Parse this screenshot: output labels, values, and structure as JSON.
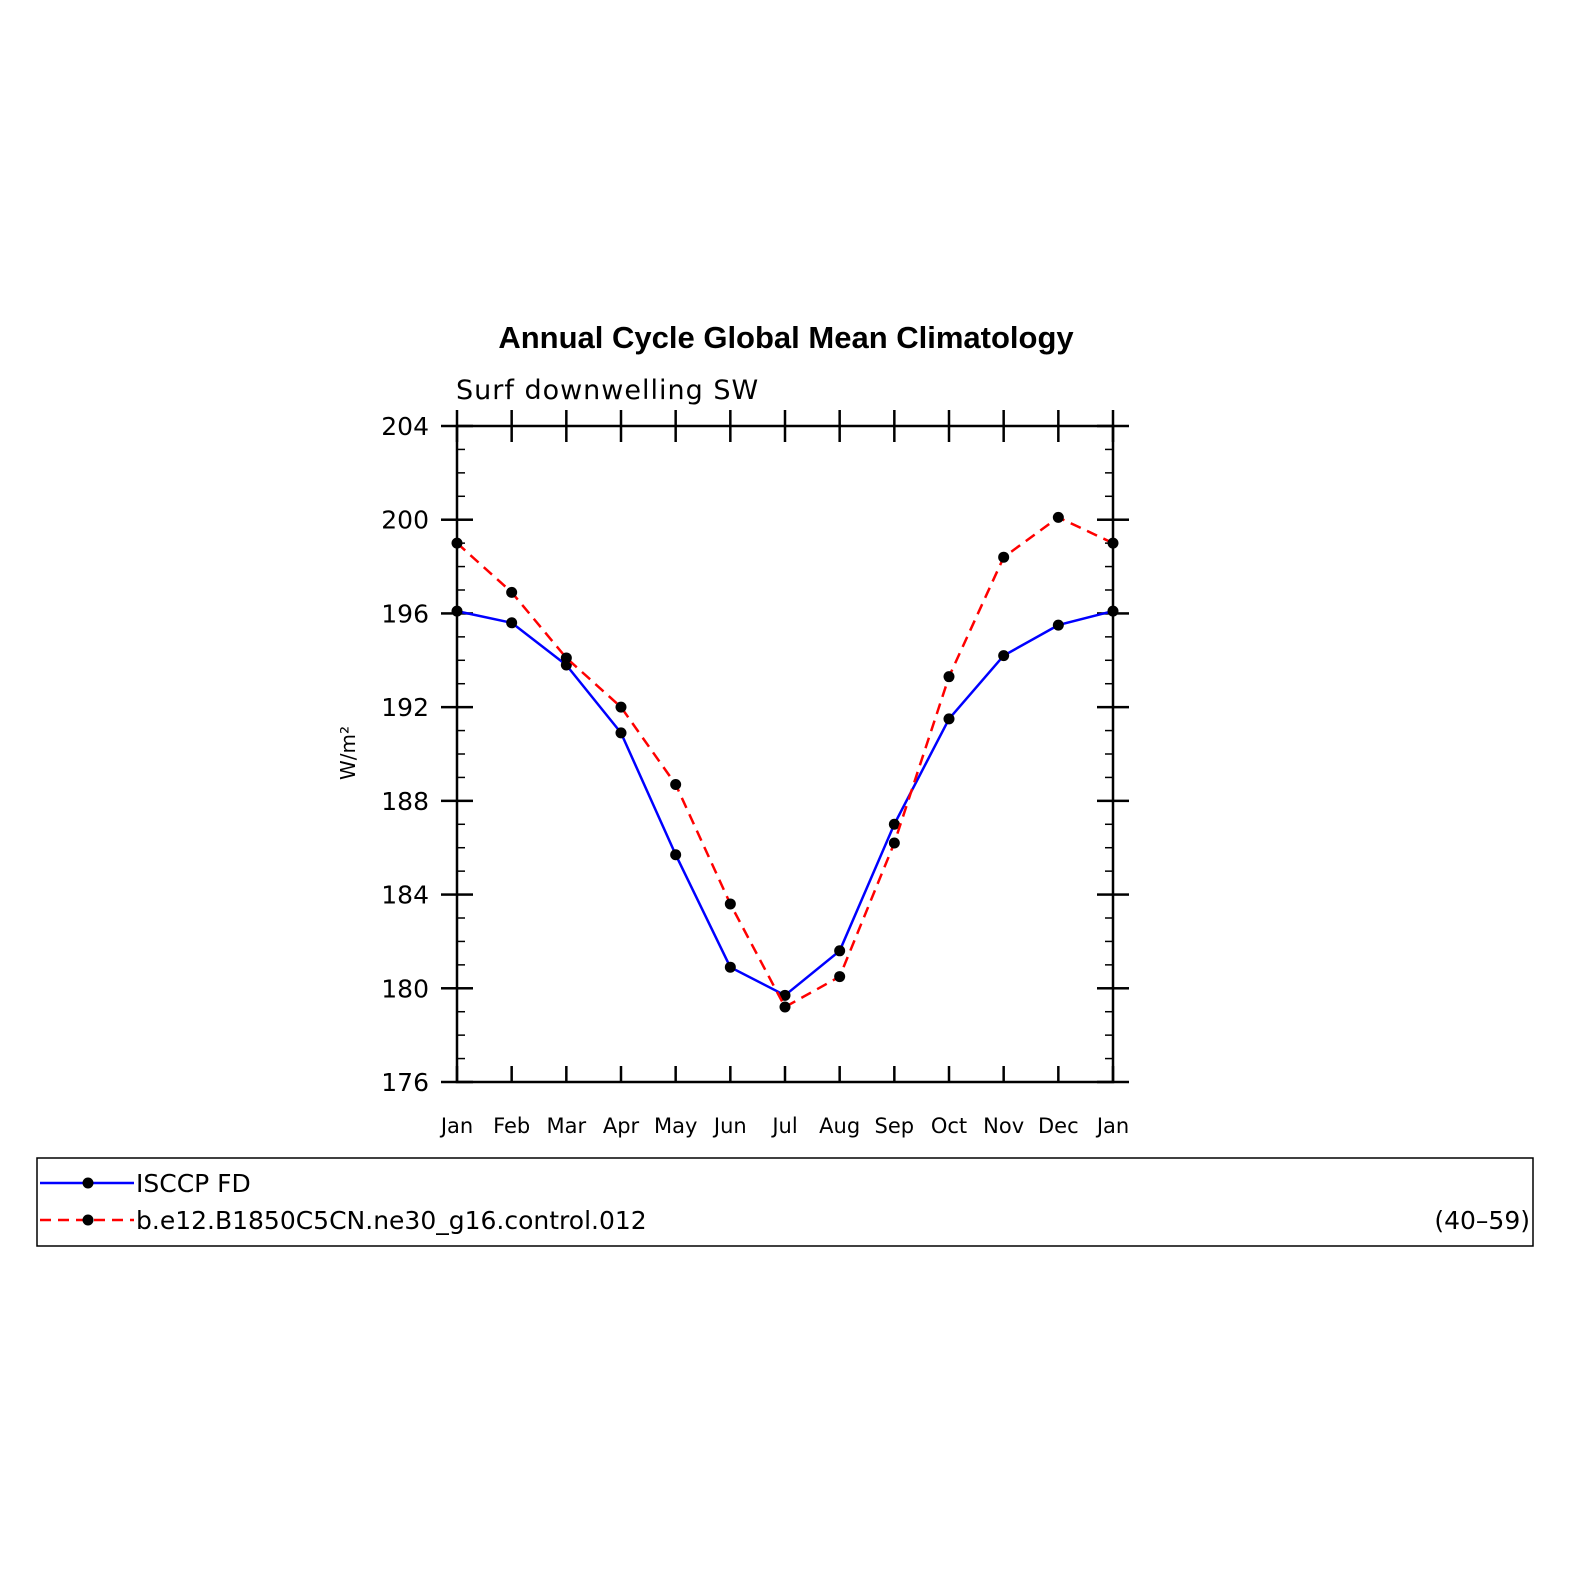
{
  "chart_data": {
    "type": "line",
    "title": "Annual Cycle Global Mean Climatology",
    "subtitle": "Surf downwelling SW",
    "ylabel": "W/m²",
    "xlabel": "",
    "categories": [
      "Jan",
      "Feb",
      "Mar",
      "Apr",
      "May",
      "Jun",
      "Jul",
      "Aug",
      "Sep",
      "Oct",
      "Nov",
      "Dec",
      "Jan"
    ],
    "ylim": [
      176,
      204
    ],
    "yticks": [
      176,
      180,
      184,
      188,
      192,
      196,
      200,
      204
    ],
    "grid": false,
    "legend_position": "bottom",
    "series": [
      {
        "name": "ISCCP FD",
        "color": "#0000ff",
        "dash": "solid",
        "marker": "filled-circle",
        "values": [
          196.1,
          195.6,
          193.8,
          190.9,
          185.7,
          180.9,
          179.7,
          181.6,
          187.0,
          191.5,
          194.2,
          195.5,
          196.1
        ]
      },
      {
        "name": "b.e12.B1850C5CN.ne30_g16.control.012",
        "color": "#ff0000",
        "dash": "dashed",
        "marker": "filled-circle",
        "values": [
          199.0,
          196.9,
          194.1,
          192.0,
          188.7,
          183.6,
          179.2,
          180.5,
          186.2,
          193.3,
          198.4,
          200.1,
          199.0
        ]
      }
    ],
    "legend_note": "(40–59)"
  }
}
